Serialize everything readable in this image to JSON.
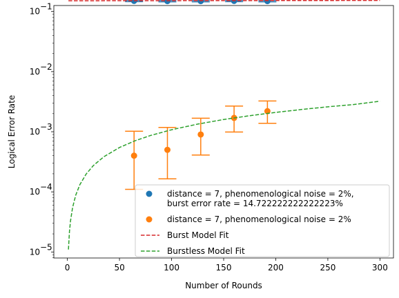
{
  "chart_data": {
    "type": "scatter",
    "xlabel": "Number of Rounds",
    "ylabel": "Logical Error Rate",
    "xlim": [
      -13,
      313
    ],
    "ylim_log10": [
      -5.1,
      -0.9
    ],
    "yscale": "log",
    "x_ticks": [
      0,
      50,
      100,
      150,
      200,
      250,
      300
    ],
    "x_tick_labels": [
      "0",
      "50",
      "100",
      "150",
      "200",
      "250",
      "300"
    ],
    "y_ticks_log10": [
      -5,
      -4,
      -3,
      -2,
      -1
    ],
    "y_tick_labels": [
      {
        "base": "10",
        "exp": "−5"
      },
      {
        "base": "10",
        "exp": "−4"
      },
      {
        "base": "10",
        "exp": "−3"
      },
      {
        "base": "10",
        "exp": "−2"
      },
      {
        "base": "10",
        "exp": "−1"
      }
    ],
    "grid": false,
    "legend_position": "lower-right",
    "series": [
      {
        "name_lines": [
          "distance = 7, phenomenological noise = 2%,",
          "burst error rate = 14.722222222222223%"
        ],
        "kind": "errorbar",
        "color": "#1f77b4",
        "x": [
          64,
          96,
          128,
          160,
          192
        ],
        "y": [
          0.15,
          0.149,
          0.149,
          0.15,
          0.149
        ],
        "ylow": [
          0.146,
          0.145,
          0.145,
          0.146,
          0.145
        ],
        "yhigh": [
          0.154,
          0.153,
          0.153,
          0.154,
          0.153
        ]
      },
      {
        "name_lines": [
          "distance = 7, phenomenological noise = 2%"
        ],
        "kind": "errorbar",
        "color": "#ff7f0e",
        "x": [
          64,
          96,
          128,
          160,
          192
        ],
        "y": [
          0.0004,
          0.0005,
          0.0009,
          0.0017,
          0.0022
        ],
        "ylow": [
          0.00011,
          0.000165,
          0.00041,
          0.00099,
          0.00138
        ],
        "yhigh": [
          0.00102,
          0.00118,
          0.00168,
          0.00268,
          0.00325
        ]
      },
      {
        "name_lines": [
          "Burst Model Fit"
        ],
        "kind": "dashed-line",
        "color": "#d62728",
        "x": [
          1,
          300
        ],
        "y": [
          0.151,
          0.153
        ]
      },
      {
        "name_lines": [
          "Burstless Model Fit"
        ],
        "kind": "dashed-line",
        "color": "#2ca02c",
        "x": [
          1,
          2,
          3,
          5,
          8,
          12,
          18,
          25,
          35,
          50,
          65,
          80,
          100,
          125,
          150,
          175,
          200,
          225,
          250,
          275,
          300
        ],
        "y": [
          1.1e-05,
          2.2e-05,
          3.3e-05,
          5.5e-05,
          8.8e-05,
          0.000132,
          0.000198,
          0.000275,
          0.000384,
          0.000547,
          0.000709,
          0.000869,
          0.00108,
          0.00134,
          0.0016,
          0.00185,
          0.0021,
          0.00235,
          0.0026,
          0.00284,
          0.00322
        ]
      }
    ]
  }
}
